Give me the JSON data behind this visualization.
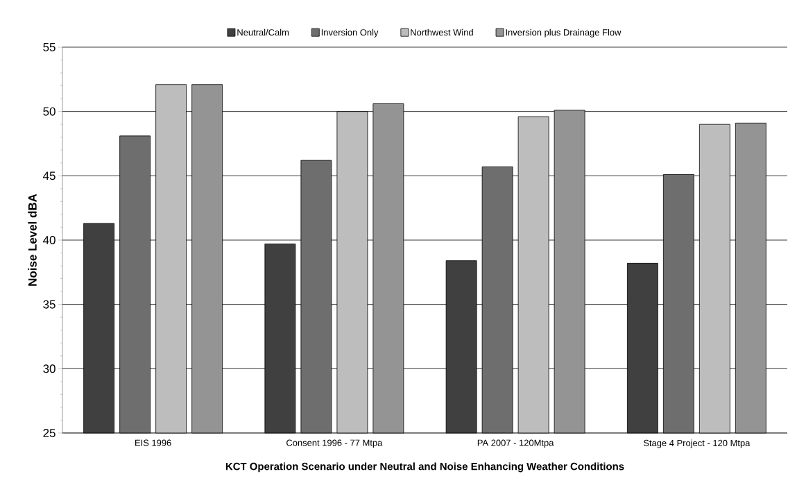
{
  "chart_data": {
    "type": "bar",
    "xlabel": "KCT Operation Scenario under Neutral and Noise Enhancing Weather Conditions",
    "ylabel": "Noise Level dBA",
    "categories": [
      "EIS 1996",
      "Consent 1996 - 77 Mtpa",
      "PA 2007 - 120Mtpa",
      "Stage 4 Project - 120 Mtpa"
    ],
    "series": [
      {
        "name": "Neutral/Calm",
        "color": "#404040",
        "values": [
          41.3,
          39.7,
          38.4,
          38.2
        ]
      },
      {
        "name": "Inversion Only",
        "color": "#6e6e6e",
        "values": [
          48.1,
          46.2,
          45.7,
          45.1
        ]
      },
      {
        "name": "Northwest Wind",
        "color": "#bdbdbd",
        "values": [
          52.1,
          50.0,
          49.6,
          49.0
        ]
      },
      {
        "name": "Inversion plus Drainage Flow",
        "color": "#949494",
        "values": [
          52.1,
          50.6,
          50.1,
          49.1
        ]
      }
    ],
    "ylim": [
      25,
      55
    ],
    "yticks": [
      25,
      30,
      35,
      40,
      45,
      50,
      55
    ],
    "grid": "y",
    "legend": "top"
  }
}
